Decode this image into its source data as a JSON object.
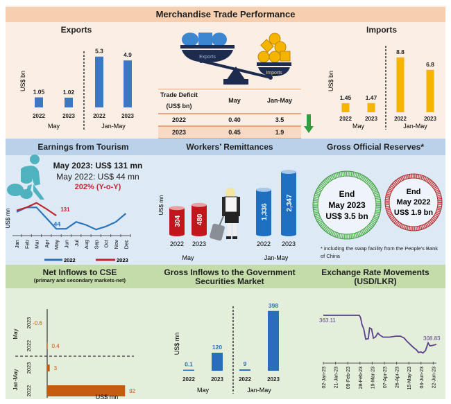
{
  "main_title": "Merchandise Trade Performance",
  "colors": {
    "trade_bg": "#fbeee4",
    "trade_header": "#f6cfb0",
    "blue_bg": "#dde9f5",
    "blue_header": "#b9d2ea",
    "green_bg": "#e4efdb",
    "green_header": "#c3dcaa",
    "export_bar": "#3c78c2",
    "import_bar": "#f4b400",
    "line_2022": "#2a74b9",
    "line_2023": "#c0272d",
    "cse_bar": "#c55a11",
    "gov_bar": "#2a6ebb",
    "fx_line": "#5a3c8c",
    "reserves_2023": "#5cb85c",
    "reserves_2022": "#c9484a",
    "down_arrow": "#2e9e3e"
  },
  "exports": {
    "title": "Exports",
    "ylabel": "US$ bn",
    "groups": [
      "May",
      "Jan-May"
    ]
  },
  "imports": {
    "title": "Imports",
    "ylabel": "US$ bn",
    "groups": [
      "May",
      "Jan-May"
    ]
  },
  "scale_graphic": {
    "left_pan": "Exports",
    "right_pan": "Imports"
  },
  "trade_deficit": {
    "header": [
      "Trade Deficit",
      "(US$ bn)",
      "May",
      "Jan-May"
    ],
    "rows": [
      {
        "year": "2022",
        "may": "0.40",
        "jan_may": "3.5"
      },
      {
        "year": "2023",
        "may": "0.45",
        "jan_may": "1.9"
      }
    ]
  },
  "tourism": {
    "title": "Earnings from Tourism",
    "line1": "May 2023: US$ 131 mn",
    "line2": "May 2022: US$ 44 mn",
    "line3": "202% (Y-o-Y)",
    "ylabel": "US$ mn",
    "label_2023": "131",
    "label_2022": "44",
    "legend": [
      "2022",
      "2023"
    ]
  },
  "remittances": {
    "title": "Workers’ Remittances",
    "ylabel": "US$ mn",
    "groups": [
      "May",
      "Jan-May"
    ]
  },
  "reserves": {
    "title": "Gross Official Reserves*",
    "circle_2023": [
      "End",
      "May 2023",
      "US$ 3.5 bn"
    ],
    "circle_2022": [
      "End",
      "May 2022",
      "US$ 1.9 bn"
    ],
    "footnote": "* including the swap facility from the People's Bank of China"
  },
  "cse": {
    "title": "Net Inflows to CSE",
    "subtitle": "(primary and secondary markets-net)",
    "xlabel": "US$ mn",
    "groups": [
      "May",
      "Jan-May"
    ]
  },
  "gov_sec": {
    "title_line1": "Gross Inflows to the Government",
    "title_line2": "Securities Market",
    "ylabel": "US$ mn",
    "groups": [
      "May",
      "Jan-May"
    ]
  },
  "fx": {
    "title_line1": "Exchange Rate Movements",
    "title_line2": "(USD/LKR)",
    "start_label": "363.11",
    "end_label": "308.83"
  },
  "chart_data": [
    {
      "id": "exports",
      "type": "bar",
      "title": "Exports",
      "ylabel": "US$ bn",
      "categories": [
        "May 2022",
        "May 2023",
        "Jan-May 2022",
        "Jan-May 2023"
      ],
      "x_tick_labels": [
        "2022",
        "2023",
        "2022",
        "2023"
      ],
      "values": [
        1.05,
        1.02,
        5.3,
        4.9
      ],
      "data_labels": [
        "1.05",
        "1.02",
        "5.3",
        "4.9"
      ],
      "ylim": [
        0,
        6
      ]
    },
    {
      "id": "imports",
      "type": "bar",
      "title": "Imports",
      "ylabel": "US$ bn",
      "categories": [
        "May 2022",
        "May 2023",
        "Jan-May 2022",
        "Jan-May 2023"
      ],
      "x_tick_labels": [
        "2022",
        "2023",
        "2022",
        "2023"
      ],
      "values": [
        1.45,
        1.47,
        8.8,
        6.8
      ],
      "data_labels": [
        "1.45",
        "1.47",
        "8.8",
        "6.8"
      ],
      "ylim": [
        0,
        10
      ]
    },
    {
      "id": "tourism",
      "type": "line",
      "title": "Earnings from Tourism",
      "ylabel": "US$ mn",
      "x": [
        "Jan",
        "Feb",
        "Mar",
        "Apr",
        "May",
        "Jun",
        "Jul",
        "Aug",
        "Sep",
        "Oct",
        "Nov",
        "Dec"
      ],
      "series": [
        {
          "name": "2022",
          "values": [
            155,
            185,
            185,
            115,
            44,
            45,
            90,
            70,
            40,
            60,
            90,
            145
          ]
        },
        {
          "name": "2023",
          "values": [
            165,
            185,
            215,
            175,
            131
          ]
        }
      ],
      "ylim": [
        0,
        250
      ],
      "legend": "bottom"
    },
    {
      "id": "remittances",
      "type": "bar",
      "title": "Workers’ Remittances",
      "ylabel": "US$ mn",
      "categories": [
        "May 2022",
        "May 2023",
        "Jan-May 2022",
        "Jan-May 2023"
      ],
      "x_tick_labels": [
        "2022",
        "2023",
        "2022",
        "2023"
      ],
      "values": [
        304,
        480,
        1336,
        2347
      ],
      "data_labels": [
        "304",
        "480",
        "1,336",
        "2,347"
      ]
    },
    {
      "id": "cse",
      "type": "bar",
      "orientation": "horizontal",
      "title": "Net Inflows to CSE",
      "xlabel": "US$ mn",
      "categories": [
        "May 2023",
        "May 2022",
        "Jan-May 2023",
        "Jan-May 2022"
      ],
      "y_tick_labels": [
        "2023",
        "2022",
        "2023",
        "2022"
      ],
      "values": [
        -0.6,
        0.4,
        3,
        92
      ],
      "data_labels": [
        "-0.6",
        "0.4",
        "3",
        "92"
      ],
      "xlim": [
        0,
        100
      ]
    },
    {
      "id": "gov_sec",
      "type": "bar",
      "title": "Gross Inflows to the Government Securities Market",
      "ylabel": "US$ mn",
      "categories": [
        "May 2022",
        "May 2023",
        "Jan-May 2022",
        "Jan-May 2023"
      ],
      "x_tick_labels": [
        "2022",
        "2023",
        "2022",
        "2023"
      ],
      "values": [
        0.1,
        120,
        9,
        398
      ],
      "data_labels": [
        "0.1",
        "120",
        "9",
        "398"
      ],
      "ylim": [
        0,
        420
      ]
    },
    {
      "id": "fx",
      "type": "line",
      "title": "Exchange Rate Movements (USD/LKR)",
      "x_tick_labels": [
        "02-Jan-23",
        "21-Jan-23",
        "09-Feb-23",
        "28-Feb-23",
        "19-Mar-23",
        "07-Apr-23",
        "26-Apr-23",
        "15-May-23",
        "03-Jun-23",
        "22-Jun-23"
      ],
      "series": [
        {
          "name": "USD/LKR",
          "points": [
            [
              "02-Jan-23",
              363.11
            ],
            [
              "05-Jan-23",
              362.8
            ],
            [
              "27-Feb-23",
              362.8
            ],
            [
              "01-Mar-23",
              358
            ],
            [
              "03-Mar-23",
              345
            ],
            [
              "06-Mar-23",
              336
            ],
            [
              "09-Mar-23",
              316
            ],
            [
              "13-Mar-23",
              317
            ],
            [
              "15-Mar-23",
              338
            ],
            [
              "18-Mar-23",
              336
            ],
            [
              "21-Mar-23",
              318
            ],
            [
              "24-Mar-23",
              320
            ],
            [
              "28-Mar-23",
              328
            ],
            [
              "31-Mar-23",
              324
            ],
            [
              "05-Apr-23",
              320
            ],
            [
              "15-Apr-23",
              320
            ],
            [
              "25-Apr-23",
              322
            ],
            [
              "02-May-23",
              322
            ],
            [
              "08-May-23",
              318
            ],
            [
              "12-May-23",
              312
            ],
            [
              "17-May-23",
              306
            ],
            [
              "22-May-23",
              300
            ],
            [
              "27-May-23",
              295
            ],
            [
              "30-May-23",
              290
            ],
            [
              "03-Jun-23",
              291
            ],
            [
              "06-Jun-23",
              289
            ],
            [
              "10-Jun-23",
              294
            ],
            [
              "14-Jun-23",
              308.83
            ],
            [
              "17-Jun-23",
              303
            ],
            [
              "22-Jun-23",
              304
            ],
            [
              "27-Jun-23",
              306
            ]
          ]
        }
      ],
      "annotations": [
        "363.11",
        "308.83"
      ],
      "ylim": [
        280,
        375
      ]
    }
  ]
}
